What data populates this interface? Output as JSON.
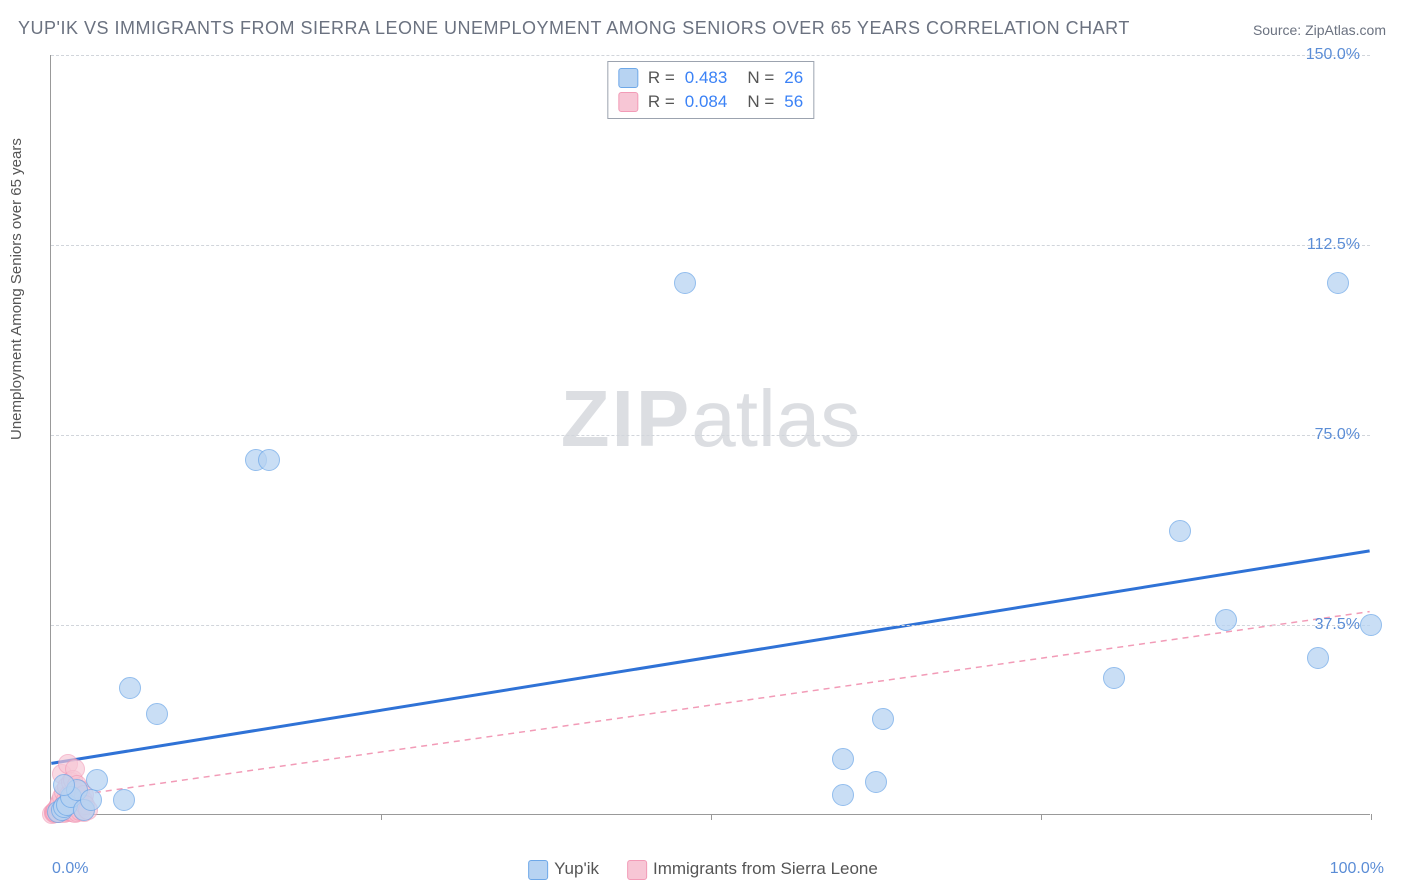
{
  "title": "YUP'IK VS IMMIGRANTS FROM SIERRA LEONE UNEMPLOYMENT AMONG SENIORS OVER 65 YEARS CORRELATION CHART",
  "source": "Source: ZipAtlas.com",
  "ylabel": "Unemployment Among Seniors over 65 years",
  "watermark_zip": "ZIP",
  "watermark_atlas": "atlas",
  "chart": {
    "type": "scatter",
    "background_color": "#ffffff",
    "grid_color": "#d1d5db",
    "axis_color": "#999999",
    "label_fontsize": 15,
    "tick_fontsize": 16,
    "tick_color": "#5b8dd6",
    "xlim": [
      0,
      100
    ],
    "ylim": [
      0,
      150
    ],
    "x_ticks": [
      0,
      25,
      50,
      75,
      100
    ],
    "x_tick_labels": [
      "0.0%",
      "",
      "",
      "",
      "100.0%"
    ],
    "y_ticks": [
      37.5,
      75.0,
      112.5,
      150.0
    ],
    "y_tick_labels": [
      "37.5%",
      "75.0%",
      "112.5%",
      "150.0%"
    ],
    "series": [
      {
        "name": "Yup'ik",
        "color_fill": "#b7d3f2",
        "color_stroke": "#6ea8e8",
        "marker_radius": 11,
        "marker_opacity": 0.75,
        "R": "0.483",
        "N": "26",
        "trend": {
          "y_at_x0": 10,
          "y_at_x100": 52,
          "stroke": "#2f72d6",
          "width": 3,
          "dash": "none"
        },
        "points": [
          [
            0.5,
            0.5
          ],
          [
            0.8,
            1.0
          ],
          [
            1.0,
            1.5
          ],
          [
            1.2,
            2.0
          ],
          [
            1.5,
            3.5
          ],
          [
            2.0,
            5.0
          ],
          [
            2.5,
            1.0
          ],
          [
            1.0,
            6.0
          ],
          [
            3.0,
            3.0
          ],
          [
            3.5,
            7.0
          ],
          [
            5.5,
            3.0
          ],
          [
            6.0,
            25.0
          ],
          [
            8.0,
            20.0
          ],
          [
            15.5,
            70.0
          ],
          [
            16.5,
            70.0
          ],
          [
            48.0,
            105.0
          ],
          [
            60.0,
            4.0
          ],
          [
            60.0,
            11.0
          ],
          [
            63.0,
            19.0
          ],
          [
            62.5,
            6.5
          ],
          [
            80.5,
            27.0
          ],
          [
            85.5,
            56.0
          ],
          [
            89.0,
            38.5
          ],
          [
            96.0,
            31.0
          ],
          [
            97.5,
            105.0
          ],
          [
            100.0,
            37.5
          ]
        ]
      },
      {
        "name": "Immigrants from Sierra Leone",
        "color_fill": "#f7c6d5",
        "color_stroke": "#f29bb7",
        "marker_radius": 10,
        "marker_opacity": 0.65,
        "R": "0.084",
        "N": "56",
        "trend": {
          "y_at_x0": 3,
          "y_at_x100": 40,
          "stroke": "#f29bb7",
          "width": 1.5,
          "dash": "6,5"
        },
        "points": [
          [
            0.1,
            0.2
          ],
          [
            0.2,
            0.3
          ],
          [
            0.2,
            0.5
          ],
          [
            0.3,
            0.4
          ],
          [
            0.3,
            0.6
          ],
          [
            0.4,
            0.8
          ],
          [
            0.4,
            1.0
          ],
          [
            0.5,
            0.3
          ],
          [
            0.5,
            1.2
          ],
          [
            0.5,
            1.5
          ],
          [
            0.6,
            0.4
          ],
          [
            0.6,
            2.0
          ],
          [
            0.7,
            0.8
          ],
          [
            0.7,
            2.5
          ],
          [
            0.8,
            1.0
          ],
          [
            0.8,
            3.5
          ],
          [
            0.8,
            8.0
          ],
          [
            0.9,
            0.5
          ],
          [
            0.9,
            1.8
          ],
          [
            1.0,
            0.3
          ],
          [
            1.0,
            2.0
          ],
          [
            1.0,
            4.5
          ],
          [
            1.1,
            0.7
          ],
          [
            1.1,
            3.0
          ],
          [
            1.2,
            1.2
          ],
          [
            1.2,
            5.5
          ],
          [
            1.3,
            0.5
          ],
          [
            1.3,
            2.5
          ],
          [
            1.3,
            10.0
          ],
          [
            1.4,
            0.8
          ],
          [
            1.4,
            4.0
          ],
          [
            1.5,
            1.0
          ],
          [
            1.5,
            2.0
          ],
          [
            1.5,
            6.5
          ],
          [
            1.6,
            0.6
          ],
          [
            1.6,
            3.5
          ],
          [
            1.7,
            1.5
          ],
          [
            1.7,
            7.0
          ],
          [
            1.8,
            0.4
          ],
          [
            1.8,
            2.2
          ],
          [
            1.8,
            9.0
          ],
          [
            1.9,
            1.0
          ],
          [
            1.9,
            4.5
          ],
          [
            2.0,
            0.5
          ],
          [
            2.0,
            2.8
          ],
          [
            2.0,
            6.0
          ],
          [
            2.1,
            1.3
          ],
          [
            2.1,
            3.5
          ],
          [
            2.2,
            0.7
          ],
          [
            2.2,
            5.0
          ],
          [
            2.3,
            1.8
          ],
          [
            2.4,
            3.0
          ],
          [
            2.5,
            0.5
          ],
          [
            2.5,
            4.0
          ],
          [
            2.6,
            2.0
          ],
          [
            2.8,
            1.0
          ]
        ]
      }
    ]
  },
  "legend_bottom": [
    {
      "label": "Yup'ik",
      "fill": "#b7d3f2",
      "stroke": "#6ea8e8"
    },
    {
      "label": "Immigrants from Sierra Leone",
      "fill": "#f7c6d5",
      "stroke": "#f29bb7"
    }
  ]
}
